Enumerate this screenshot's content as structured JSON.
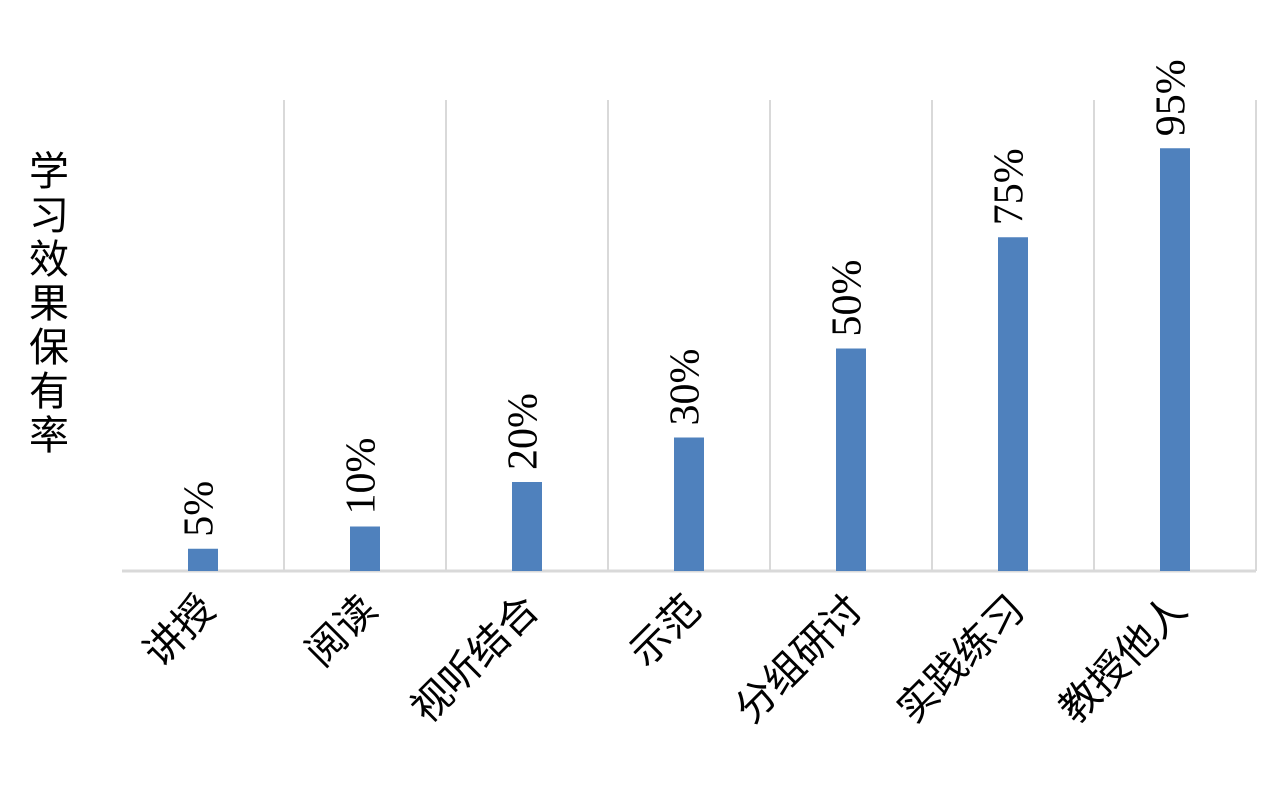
{
  "chart_data": {
    "type": "bar",
    "y_label": "学习效果保有率",
    "categories": [
      "讲授",
      "阅读",
      "视听结合",
      "示范",
      "分组研讨",
      "实践练习",
      "教授他人"
    ],
    "values": [
      5,
      10,
      20,
      30,
      50,
      75,
      95
    ],
    "value_labels": [
      "5%",
      "10%",
      "20%",
      "30%",
      "50%",
      "75%",
      "95%"
    ],
    "color": "#4f81bd",
    "ylim": [
      0,
      100
    ]
  }
}
